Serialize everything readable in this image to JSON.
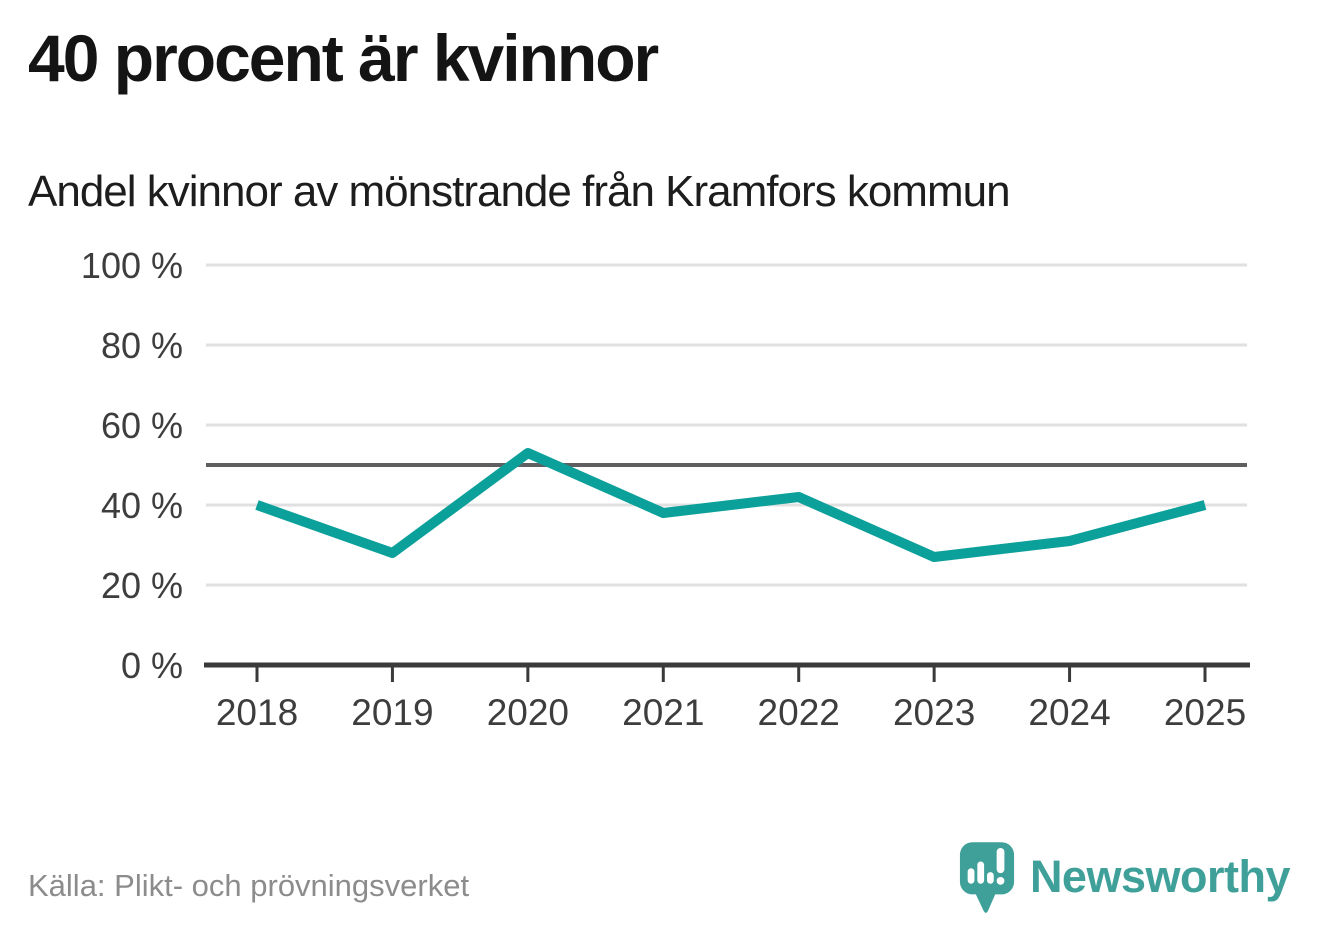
{
  "header": {
    "title": "40 procent är kvinnor",
    "subtitle": "Andel kvinnor av mönstrande från Kramfors kommun"
  },
  "chart_data": {
    "type": "line",
    "x": [
      2018,
      2019,
      2020,
      2021,
      2022,
      2023,
      2024,
      2025
    ],
    "series": [
      {
        "name": "Andel kvinnor av mönstrande",
        "values": [
          40,
          28,
          53,
          38,
          42,
          27,
          31,
          40
        ]
      }
    ],
    "title": "40 procent är kvinnor",
    "subtitle": "Andel kvinnor av mönstrande från Kramfors kommun",
    "xlabel": "",
    "ylabel": "",
    "ylim": [
      0,
      100
    ],
    "yticks": [
      0,
      20,
      40,
      60,
      80,
      100
    ],
    "ytick_suffix": " %",
    "reference_line": 50,
    "grid": true,
    "legend": "none"
  },
  "colors": {
    "line": "#0ca09a",
    "grid": "#e0e0e0",
    "reference_line": "#5f5f62",
    "axis": "#3a3a3a",
    "tick_label": "#3d3d3d",
    "source_text": "#8c8c8c",
    "brand_teal": "#3fa09a",
    "title_text": "#141414"
  },
  "footer": {
    "source": "Källa: Plikt- och prövningsverket",
    "brand_name": "Newsworthy"
  }
}
